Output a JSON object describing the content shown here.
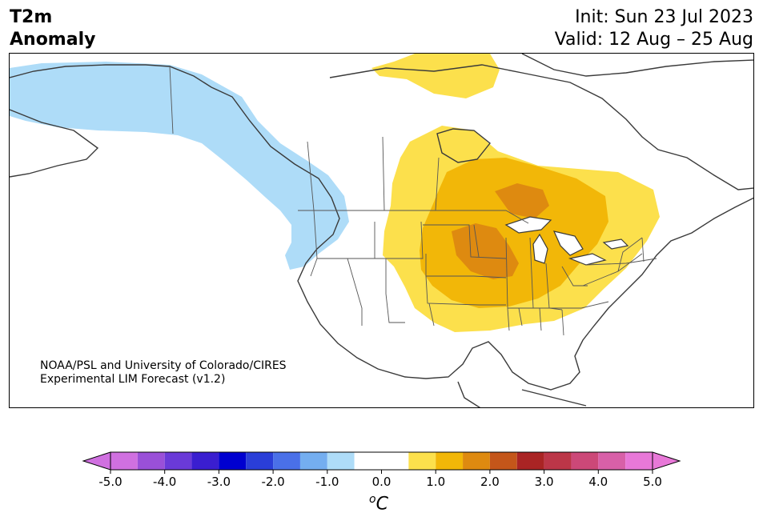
{
  "title": {
    "line1": "T2m",
    "line2": "Anomaly"
  },
  "init": "Init: Sun 23 Jul 2023",
  "valid": "Valid: 12 Aug – 25 Aug",
  "credit": {
    "line1": "NOAA/PSL and University of Colorado/CIRES",
    "line2": "Experimental LIM Forecast (v1.2)"
  },
  "colorbar": {
    "unit_base": "C",
    "unit_sup": "o",
    "tick_labels": [
      "-5.0",
      "-4.0",
      "-3.0",
      "-2.0",
      "-1.0",
      "0.0",
      "1.0",
      "2.0",
      "3.0",
      "4.0",
      "5.0"
    ],
    "ticks": [
      -5,
      -4,
      -3,
      -2,
      -1,
      0,
      1,
      2,
      3,
      4,
      5
    ],
    "bins": [
      -5,
      -4.5,
      -4,
      -3.5,
      -3,
      -2.5,
      -2,
      -1.5,
      -1,
      -0.5,
      0.5,
      1,
      1.5,
      2,
      2.5,
      3,
      3.5,
      4,
      4.5,
      5
    ],
    "colors": [
      "#d070e0",
      "#9a50d8",
      "#6a3ad8",
      "#3a1ed0",
      "#0000d0",
      "#2a3ed8",
      "#4a70e8",
      "#74aef0",
      "#aedcf8",
      "#ffffff",
      "#fce04c",
      "#f2b708",
      "#de8a10",
      "#c4561a",
      "#aa2424",
      "#bc3648",
      "#cc4878",
      "#d860a8",
      "#e878d8"
    ],
    "under_color": "#d070e0",
    "over_color": "#e878d8"
  },
  "map": {
    "colors": {
      "cold": "#aedcf8",
      "warm1": "#fce04c",
      "warm2": "#f2b708",
      "warm3": "#de8a10",
      "land_line": "#3a3a3a",
      "border_line": "#555555"
    }
  }
}
